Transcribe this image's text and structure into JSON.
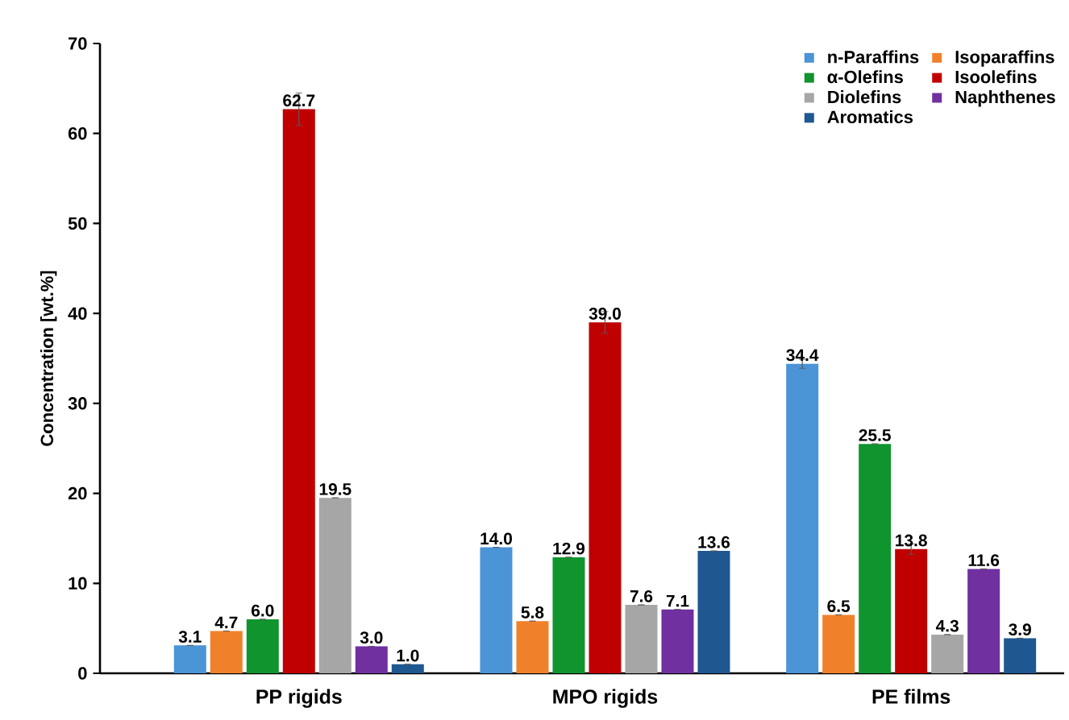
{
  "chart_data": {
    "type": "bar",
    "ylabel": "Concentration [wt.%]",
    "categories": [
      "PP rigids",
      "MPO rigids",
      "PE films"
    ],
    "series": [
      {
        "name": "n-Paraffins",
        "color": "#4b94d6",
        "values": [
          3.1,
          14.0,
          34.4
        ],
        "errors": [
          null,
          null,
          0.5
        ],
        "value_labels": [
          "3.1",
          "14.0",
          "34.4"
        ]
      },
      {
        "name": "Isoparaffins",
        "color": "#f0812a",
        "values": [
          4.7,
          5.8,
          6.5
        ],
        "value_labels": [
          "4.7",
          "5.8",
          "6.5"
        ]
      },
      {
        "name": "α-Olefins",
        "color": "#10942e",
        "values": [
          6.0,
          12.9,
          25.5
        ],
        "value_labels": [
          "6.0",
          "12.9",
          "25.5"
        ]
      },
      {
        "name": "Isoolefins",
        "color": "#c00000",
        "values": [
          62.7,
          39.0,
          13.8
        ],
        "errors": [
          1.8,
          1.2,
          0.6
        ],
        "value_labels": [
          "62.7",
          "39.0",
          "13.8"
        ]
      },
      {
        "name": "Diolefins",
        "color": "#a6a6a6",
        "values": [
          19.5,
          7.6,
          4.3
        ],
        "value_labels": [
          "19.5",
          "7.6",
          "4.3"
        ]
      },
      {
        "name": "Naphthenes",
        "color": "#7030a0",
        "values": [
          3.0,
          7.1,
          11.6
        ],
        "value_labels": [
          "3.0",
          "7.1",
          "11.6"
        ]
      },
      {
        "name": "Aromatics",
        "color": "#1f5791",
        "values": [
          1.0,
          13.6,
          3.9
        ],
        "value_labels": [
          "1.0",
          "13.6",
          "3.9"
        ]
      }
    ],
    "ylim": [
      0,
      70
    ],
    "yticks": [
      0,
      10,
      20,
      30,
      40,
      50,
      60,
      70
    ],
    "legend": "top right",
    "grid": false
  }
}
